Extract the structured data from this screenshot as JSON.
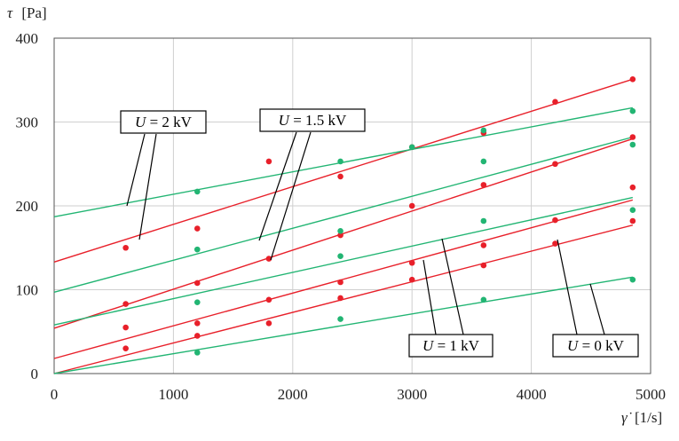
{
  "chart_data": {
    "type": "scatter",
    "title": "",
    "y_symbol": "τ",
    "y_unit": "[Pa]",
    "x_symbol": "γ̇",
    "x_unit": "[1/s]",
    "xlim": [
      0,
      5000
    ],
    "ylim": [
      0,
      400
    ],
    "xticks": [
      "0",
      "1000",
      "2000",
      "3000",
      "4000",
      "5000"
    ],
    "yticks": [
      "0",
      "100",
      "200",
      "300",
      "400"
    ],
    "grid": true,
    "legend": "none",
    "colors": {
      "red": "#e8202a",
      "green": "#22b573",
      "frame": "#555555",
      "grid": "#cfcfcf"
    },
    "series": [
      {
        "color": "red",
        "points": [
          [
            600,
            150
          ],
          [
            1200,
            173
          ],
          [
            1800,
            253
          ],
          [
            2400,
            235
          ],
          [
            3000,
            270
          ],
          [
            3600,
            287
          ],
          [
            4200,
            324
          ],
          [
            4850,
            351
          ]
        ],
        "fit": [
          [
            0,
            133
          ],
          [
            4850,
            351
          ]
        ]
      },
      {
        "color": "red",
        "points": [
          [
            600,
            83
          ],
          [
            1200,
            108
          ],
          [
            1800,
            137
          ],
          [
            2400,
            165
          ],
          [
            3000,
            200
          ],
          [
            3600,
            225
          ],
          [
            4200,
            250
          ],
          [
            4850,
            282
          ]
        ],
        "fit": [
          [
            0,
            54
          ],
          [
            4850,
            280
          ]
        ]
      },
      {
        "color": "red",
        "points": [
          [
            600,
            55
          ],
          [
            1200,
            60
          ],
          [
            1800,
            88
          ],
          [
            2400,
            109
          ],
          [
            3000,
            132
          ],
          [
            3600,
            153
          ],
          [
            4200,
            183
          ],
          [
            4850,
            222
          ]
        ],
        "fit": [
          [
            0,
            18
          ],
          [
            4850,
            207
          ]
        ]
      },
      {
        "color": "red",
        "points": [
          [
            600,
            30
          ],
          [
            1200,
            45
          ],
          [
            1800,
            60
          ],
          [
            2400,
            90
          ],
          [
            3000,
            112
          ],
          [
            3600,
            129
          ],
          [
            4200,
            155
          ],
          [
            4850,
            182
          ]
        ],
        "fit": [
          [
            0,
            0
          ],
          [
            4850,
            177
          ]
        ]
      },
      {
        "color": "green",
        "points": [
          [
            1200,
            217
          ],
          [
            2400,
            253
          ],
          [
            3000,
            270
          ],
          [
            3600,
            290
          ],
          [
            4850,
            313
          ]
        ],
        "fit": [
          [
            0,
            187
          ],
          [
            4850,
            317
          ]
        ]
      },
      {
        "color": "green",
        "points": [
          [
            1200,
            148
          ],
          [
            2400,
            170
          ],
          [
            3600,
            253
          ],
          [
            4850,
            273
          ]
        ],
        "fit": [
          [
            0,
            97
          ],
          [
            4850,
            282
          ]
        ]
      },
      {
        "color": "green",
        "points": [
          [
            1200,
            85
          ],
          [
            2400,
            140
          ],
          [
            3600,
            182
          ],
          [
            4850,
            195
          ]
        ],
        "fit": [
          [
            0,
            58
          ],
          [
            4850,
            210
          ]
        ]
      },
      {
        "color": "green",
        "points": [
          [
            1200,
            25
          ],
          [
            2400,
            65
          ],
          [
            3600,
            88
          ],
          [
            4850,
            112
          ]
        ],
        "fit": [
          [
            0,
            0
          ],
          [
            4850,
            115
          ]
        ]
      }
    ],
    "annotations": [
      {
        "prefix": "U",
        "value": " = 2 kV"
      },
      {
        "prefix": "U",
        "value": " = 1.5 kV"
      },
      {
        "prefix": "U",
        "value": " = 1 kV"
      },
      {
        "prefix": "U",
        "value": " = 0 kV"
      }
    ]
  }
}
